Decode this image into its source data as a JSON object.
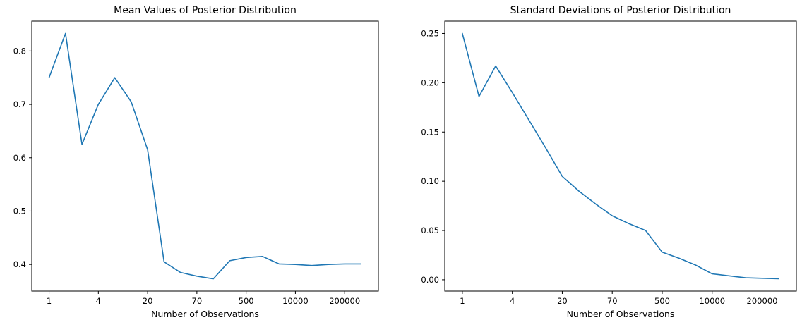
{
  "chart_data": [
    {
      "type": "line",
      "title": "Mean Values of Posterior Distribution",
      "xlabel": "Number of Observations",
      "series_name": "posterior-mean-line",
      "line_color": "#1f77b4",
      "axis_color": "#000000",
      "x_scale": "log-like, points evenly spaced",
      "n_points": 20,
      "x_tick_indices": [
        0,
        3,
        6,
        9,
        12,
        15,
        18
      ],
      "x_tick_labels": [
        "1",
        "4",
        "20",
        "70",
        "500",
        "10000",
        "200000"
      ],
      "y_ticks": [
        0.4,
        0.5,
        0.6,
        0.7,
        0.8
      ],
      "y_tick_labels": [
        "0.4",
        "0.5",
        "0.6",
        "0.7",
        "0.8"
      ],
      "ylim": [
        0.35,
        0.856
      ],
      "values": [
        0.75,
        0.833,
        0.625,
        0.7,
        0.75,
        0.705,
        0.615,
        0.405,
        0.385,
        0.378,
        0.373,
        0.407,
        0.413,
        0.415,
        0.401,
        0.4,
        0.398,
        0.4,
        0.401,
        0.401
      ]
    },
    {
      "type": "line",
      "title": "Standard Deviations of Posterior Distribution",
      "xlabel": "Number of Observations",
      "series_name": "posterior-std-line",
      "line_color": "#1f77b4",
      "axis_color": "#000000",
      "x_scale": "log-like, points evenly spaced",
      "n_points": 20,
      "x_tick_indices": [
        0,
        3,
        6,
        9,
        12,
        15,
        18
      ],
      "x_tick_labels": [
        "1",
        "4",
        "20",
        "70",
        "500",
        "10000",
        "200000"
      ],
      "y_ticks": [
        0.0,
        0.05,
        0.1,
        0.15,
        0.2,
        0.25
      ],
      "y_tick_labels": [
        "0.00",
        "0.05",
        "0.10",
        "0.15",
        "0.20",
        "0.25"
      ],
      "ylim": [
        -0.0115,
        0.2625
      ],
      "values": [
        0.25,
        0.186,
        0.217,
        0.19,
        0.162,
        0.134,
        0.105,
        0.09,
        0.077,
        0.065,
        0.057,
        0.05,
        0.028,
        0.022,
        0.015,
        0.006,
        0.004,
        0.002,
        0.0015,
        0.001
      ]
    }
  ]
}
